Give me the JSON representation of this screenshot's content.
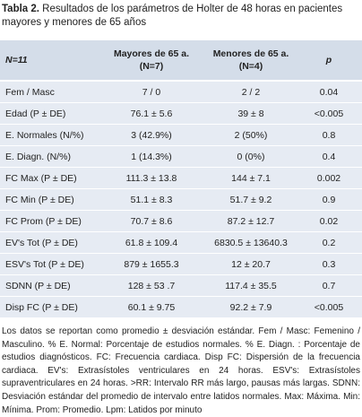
{
  "title": {
    "label": "Tabla 2.",
    "text": "Resultados de los parámetros de Holter de 48 horas en pacientes mayores y menores de 65 años"
  },
  "table": {
    "header": [
      [
        "N=11"
      ],
      [
        "Mayores de 65 a.",
        "(N=7)"
      ],
      [
        "Menores de 65 a.",
        "(N=4)"
      ],
      [
        "p"
      ]
    ],
    "rows": [
      [
        "Fem / Masc",
        "7 / 0",
        "2 / 2",
        "0.04"
      ],
      [
        "Edad (P ± DE)",
        "76.1 ± 5.6",
        "39 ± 8",
        "<0.005"
      ],
      [
        "E. Normales (N/%)",
        "3 (42.9%)",
        "2 (50%)",
        "0.8"
      ],
      [
        "E. Diagn. (N/%)",
        "1 (14.3%)",
        "0 (0%)",
        "0.4"
      ],
      [
        "FC Max (P ± DE)",
        "111.3 ± 13.8",
        "144 ± 7.1",
        "0.002"
      ],
      [
        "FC Min (P ± DE)",
        "51.1 ± 8.3",
        "51.7 ± 9.2",
        "0.9"
      ],
      [
        "FC Prom (P ± DE)",
        "70.7 ± 8.6",
        "87.2 ± 12.7",
        "0.02"
      ],
      [
        "EV's Tot (P ± DE)",
        "61.8 ± 109.4",
        "6830.5 ± 13640.3",
        "0.2"
      ],
      [
        "ESV's Tot (P ± DE)",
        "879 ± 1655.3",
        "12 ± 20.7",
        "0.3"
      ],
      [
        "SDNN (P ± DE)",
        "128 ± 53 .7",
        "117.4 ± 35.5",
        "0.7"
      ],
      [
        "Disp FC (P ± DE)",
        "60.1 ± 9.75",
        "92.2 ± 7.9",
        "<0.005"
      ]
    ]
  },
  "footnote": "Los datos se reportan como promedio ± desviación estándar. Fem / Masc: Femenino / Masculino. % E. Normal: Porcentaje de estudios normales. % E. Diagn. : Porcentaje de estudios diagnósticos. FC: Frecuencia cardiaca. Disp FC: Dispersión de la frecuencia cardiaca. EV's: Extrasístoles ventriculares en 24 horas. ESV's: Extrasístoles supraventriculares en 24 horas. >RR: Intervalo RR más largo, pausas más largas. SDNN: Desviación estándar del promedio de intervalo entre latidos normales. Max: Máxima. Min: Mínima. Prom: Promedio. Lpm: Latidos por minuto"
}
